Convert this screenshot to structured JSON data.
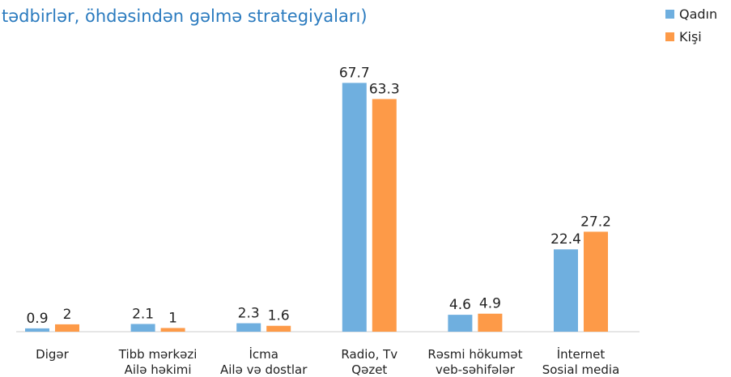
{
  "chart_data": {
    "type": "bar",
    "title": "tədbirlər, öhdəsindən gəlmə strategiyaları)",
    "categories": [
      [
        "Digər"
      ],
      [
        "Tibb mərkəzi",
        "Ailə həkimi"
      ],
      [
        "İcma",
        "Ailə və dostlar"
      ],
      [
        "Radio, Tv",
        "Qəzet"
      ],
      [
        "Rəsmi hökumət",
        "veb-səhifələr"
      ],
      [
        "İnternet",
        "Sosial media"
      ]
    ],
    "series": [
      {
        "name": "Qadın",
        "color": "#6fafdf",
        "values": [
          0.9,
          2.1,
          2.3,
          67.7,
          4.6,
          22.4
        ]
      },
      {
        "name": "Kişi",
        "color": "#fd9a48",
        "values": [
          2,
          1,
          1.6,
          63.3,
          4.9,
          27.2
        ]
      }
    ],
    "ylim": [
      0,
      70
    ],
    "legend": "top-right"
  }
}
